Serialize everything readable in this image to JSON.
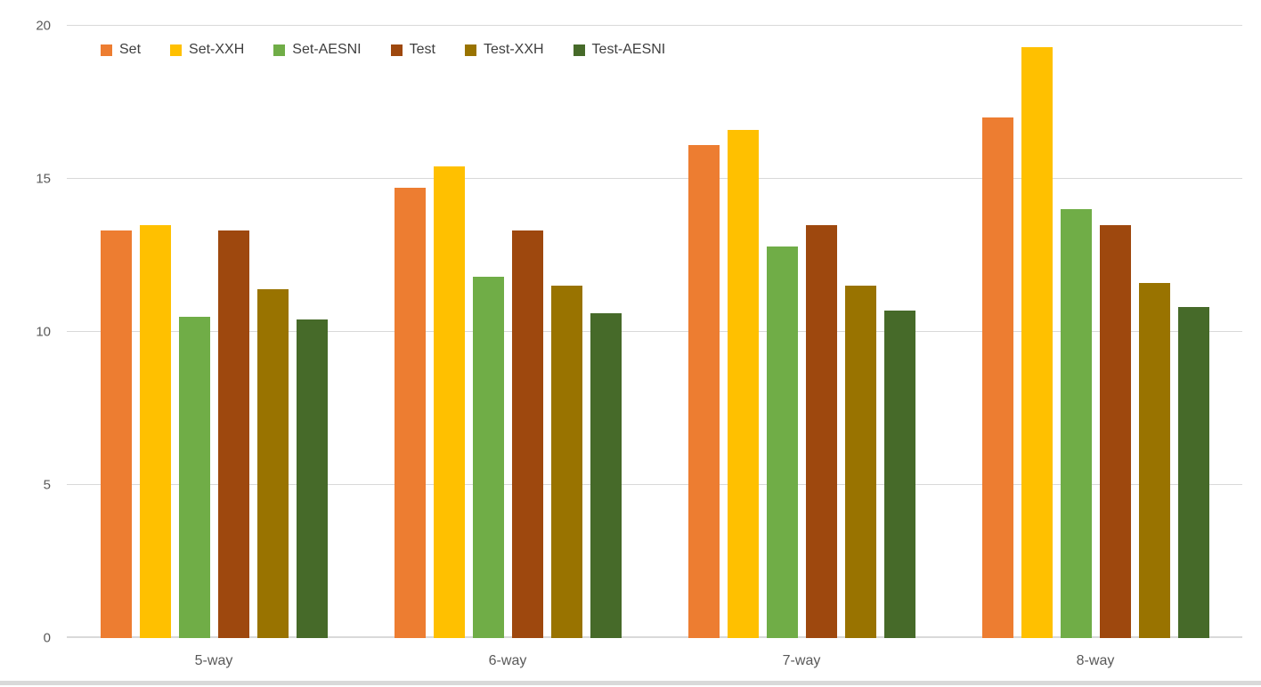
{
  "chart_data": {
    "type": "bar",
    "title": "",
    "xlabel": "",
    "ylabel": "",
    "categories": [
      "5-way",
      "6-way",
      "7-way",
      "8-way"
    ],
    "series": [
      {
        "name": "Set",
        "color": "#ED7D31",
        "values": [
          13.3,
          14.7,
          16.1,
          17.0
        ]
      },
      {
        "name": "Set-XXH",
        "color": "#FFC000",
        "values": [
          13.5,
          15.4,
          16.6,
          19.3
        ]
      },
      {
        "name": "Set-AESNI",
        "color": "#70AD47",
        "values": [
          10.5,
          11.8,
          12.8,
          14.0
        ]
      },
      {
        "name": "Test",
        "color": "#9E480E",
        "values": [
          13.3,
          13.3,
          13.5,
          13.5
        ]
      },
      {
        "name": "Test-XXH",
        "color": "#997300",
        "values": [
          11.4,
          11.5,
          11.5,
          11.6
        ]
      },
      {
        "name": "Test-AESNI",
        "color": "#466A29",
        "values": [
          10.4,
          10.6,
          10.7,
          10.8
        ]
      }
    ],
    "ylim": [
      0,
      20
    ],
    "yticks": [
      0,
      5,
      10,
      15,
      20
    ],
    "grid": true,
    "legend_position": "top-left"
  },
  "styles": {
    "gridline_color": "#D9D9D9",
    "axis_text_color": "#595959",
    "legend_text_color": "#3F3F3F",
    "background_color": "#FFFFFF",
    "bottom_strip_color": "#D9D9D9"
  }
}
